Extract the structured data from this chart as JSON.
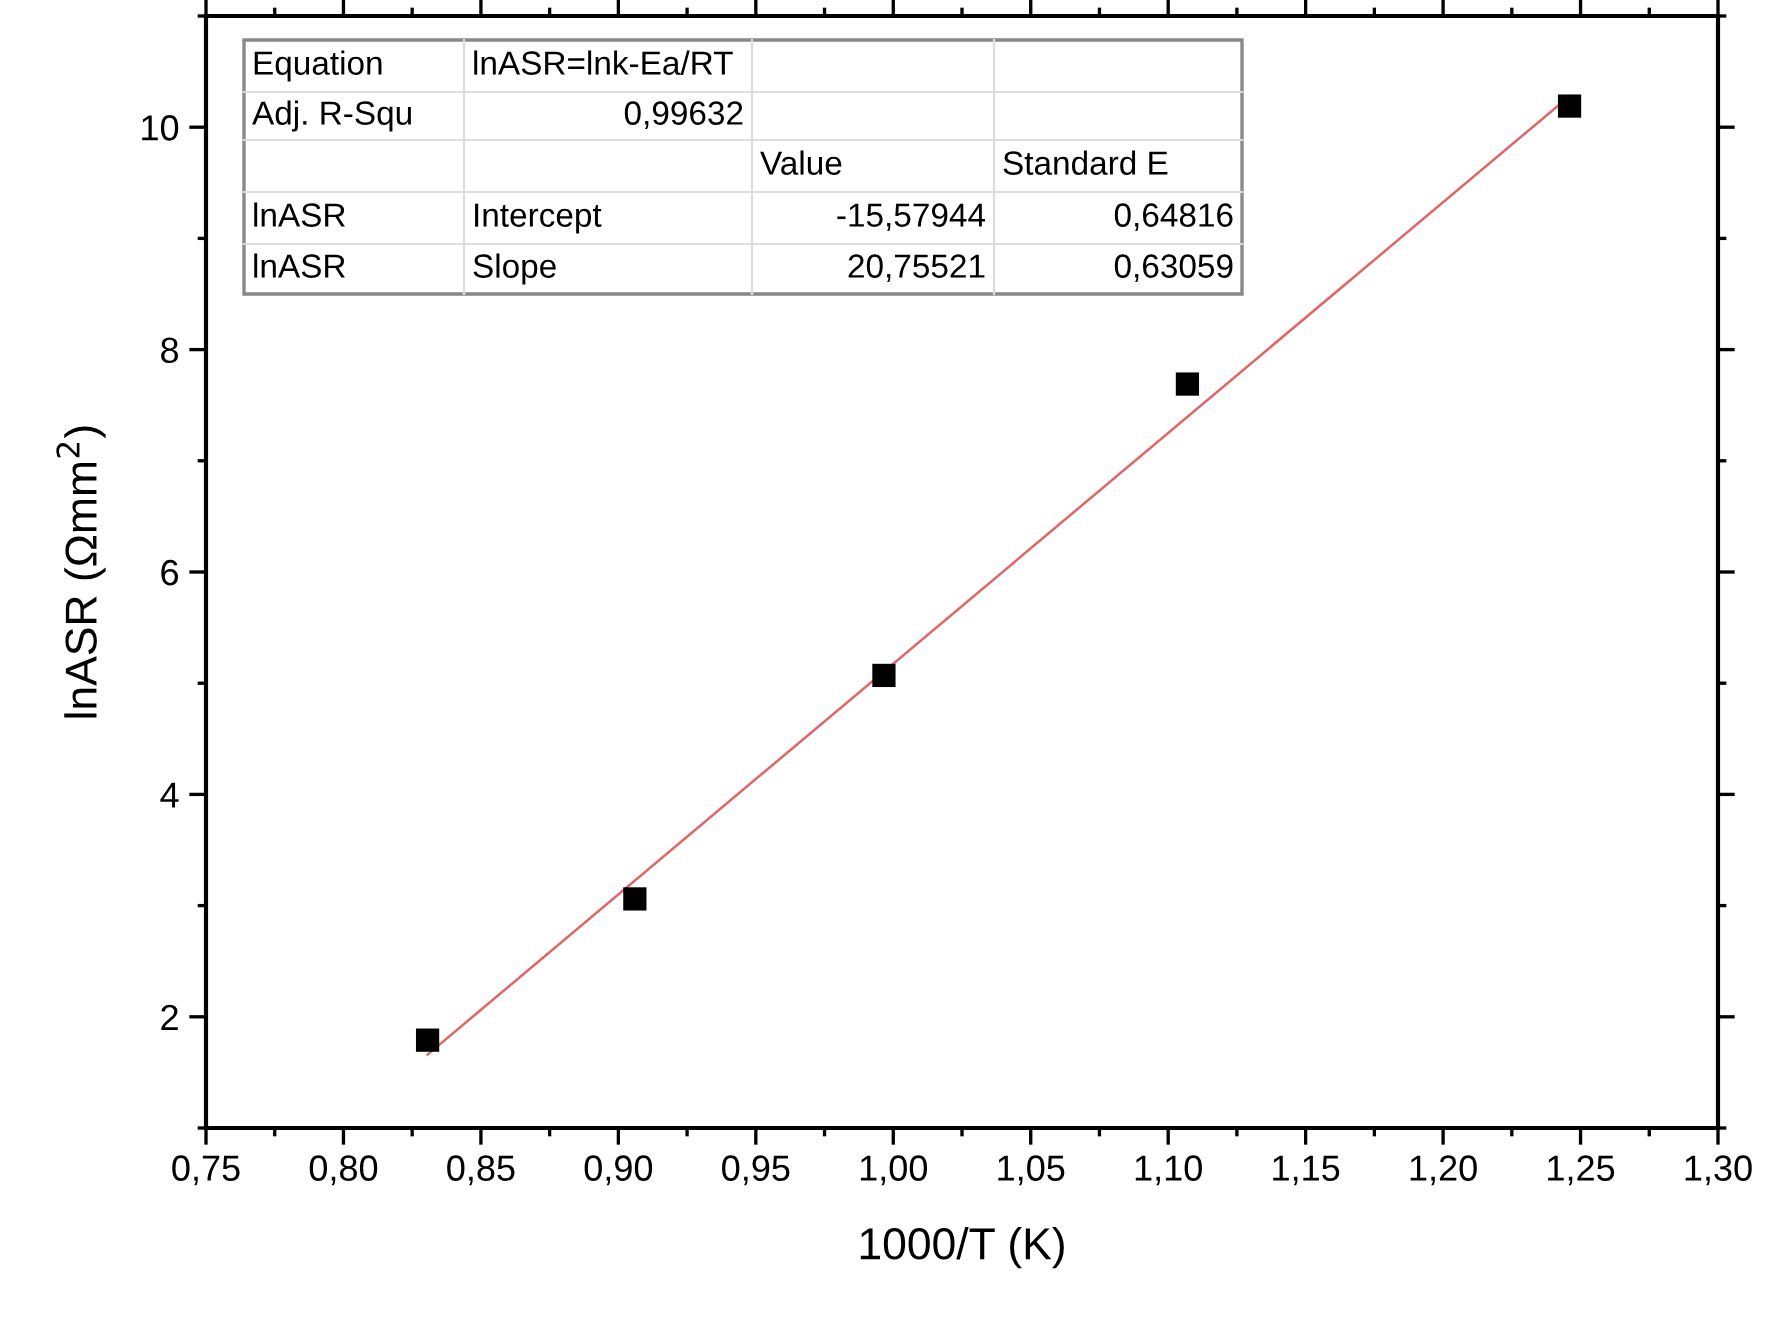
{
  "chart_data": {
    "type": "scatter",
    "xlabel": "1000/T (K)",
    "ylabel": "lnASR (Ωmm$^{2}$)",
    "series": [
      {
        "color": "#000000",
        "marker": "square",
        "x": [
          0.8306,
          0.906,
          0.9966,
          1.107,
          1.246
        ],
        "values": [
          1.79,
          3.06,
          5.07,
          7.69,
          10.19
        ]
      },
      {
        "type": "line",
        "color": "#e06666",
        "marker": "none",
        "line_style": "solid",
        "x": [
          0.8306,
          1.246
        ],
        "values": [
          1.66,
          10.28
        ]
      }
    ],
    "xlim": [
      0.75,
      1.3
    ],
    "xticks": [
      {
        "value": 0.75,
        "label": "0,75"
      },
      {
        "value": 0.775,
        "label": null
      },
      {
        "value": 0.8,
        "label": "0,80"
      },
      {
        "value": 0.825,
        "label": null
      },
      {
        "value": 0.85,
        "label": "0,85"
      },
      {
        "value": 0.875,
        "label": null
      },
      {
        "value": 0.9,
        "label": "0,90"
      },
      {
        "value": 0.925,
        "label": null
      },
      {
        "value": 0.95,
        "label": "0,95"
      },
      {
        "value": 0.975,
        "label": null
      },
      {
        "value": 1.0,
        "label": "1,00"
      },
      {
        "value": 1.025,
        "label": null
      },
      {
        "value": 1.05,
        "label": "1,05"
      },
      {
        "value": 1.075,
        "label": null
      },
      {
        "value": 1.1,
        "label": "1,10"
      },
      {
        "value": 1.125,
        "label": null
      },
      {
        "value": 1.15,
        "label": "1,15"
      },
      {
        "value": 1.175,
        "label": null
      },
      {
        "value": 1.2,
        "label": "1,20"
      },
      {
        "value": 1.225,
        "label": null
      },
      {
        "value": 1.25,
        "label": "1,25"
      },
      {
        "value": 1.275,
        "label": null
      },
      {
        "value": 1.3,
        "label": "1,30"
      }
    ],
    "ylim": [
      1,
      11
    ],
    "yticks": [
      {
        "value": 1,
        "label": null
      },
      2,
      {
        "value": 3,
        "label": null
      },
      4,
      {
        "value": 5,
        "label": null
      },
      6,
      {
        "value": 7,
        "label": null
      },
      8,
      {
        "value": 9,
        "label": null
      },
      10,
      {
        "value": 11,
        "label": null
      }
    ],
    "grid": false,
    "legend": false,
    "annotations": [
      "Equation",
      "lnASR=lnk-Ea/RT",
      "Adj. R-Squ",
      "0,99632",
      "Value",
      "Standard E",
      "lnASR",
      "Intercept",
      "-15,57944",
      "0,64816",
      "lnASR",
      "Slope",
      "20,75521",
      "0,63059"
    ]
  }
}
